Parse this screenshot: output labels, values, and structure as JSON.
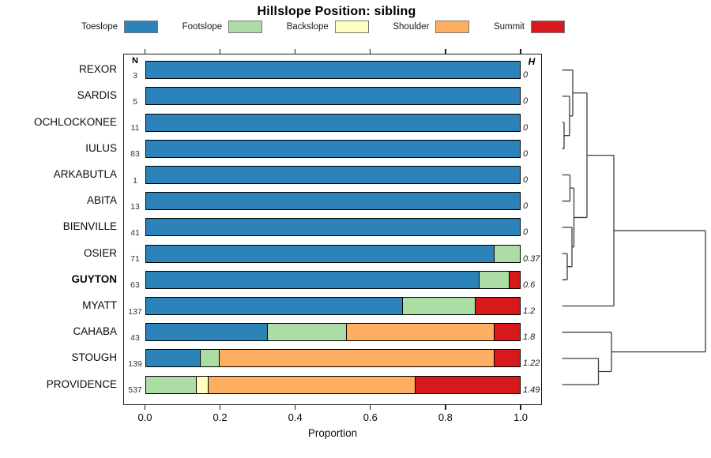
{
  "chart_data": {
    "type": "bar",
    "orientation": "horizontal-stacked",
    "title": "Hillslope Position: sibling",
    "xlabel": "Proportion",
    "xlim": [
      0.0,
      1.0
    ],
    "x_ticks": [
      "0.0",
      "0.2",
      "0.4",
      "0.6",
      "0.8",
      "1.0"
    ],
    "grid": false,
    "legend_position": "top",
    "n_header": "N",
    "h_header": "H",
    "classes": [
      {
        "label": "Toeslope",
        "color": "#2B83BA"
      },
      {
        "label": "Footslope",
        "color": "#ABDDA4"
      },
      {
        "label": "Backslope",
        "color": "#FFFFBF"
      },
      {
        "label": "Shoulder",
        "color": "#FDAE61"
      },
      {
        "label": "Summit",
        "color": "#D7191C"
      }
    ],
    "rows": [
      {
        "label": "REXOR",
        "n": "3",
        "h": "0",
        "bold": false,
        "segments": [
          {
            "class": "Toeslope",
            "p": 1.0
          }
        ]
      },
      {
        "label": "SARDIS",
        "n": "5",
        "h": "0",
        "bold": false,
        "segments": [
          {
            "class": "Toeslope",
            "p": 1.0
          }
        ]
      },
      {
        "label": "OCHLOCKONEE",
        "n": "11",
        "h": "0",
        "bold": false,
        "segments": [
          {
            "class": "Toeslope",
            "p": 1.0
          }
        ]
      },
      {
        "label": "IULUS",
        "n": "83",
        "h": "0",
        "bold": false,
        "segments": [
          {
            "class": "Toeslope",
            "p": 1.0
          }
        ]
      },
      {
        "label": "ARKABUTLA",
        "n": "1",
        "h": "0",
        "bold": false,
        "segments": [
          {
            "class": "Toeslope",
            "p": 1.0
          }
        ]
      },
      {
        "label": "ABITA",
        "n": "13",
        "h": "0",
        "bold": false,
        "segments": [
          {
            "class": "Toeslope",
            "p": 1.0
          }
        ]
      },
      {
        "label": "BIENVILLE",
        "n": "41",
        "h": "0",
        "bold": false,
        "segments": [
          {
            "class": "Toeslope",
            "p": 1.0
          }
        ]
      },
      {
        "label": "OSIER",
        "n": "71",
        "h": "0.37",
        "bold": false,
        "segments": [
          {
            "class": "Toeslope",
            "p": 0.93
          },
          {
            "class": "Footslope",
            "p": 0.07
          }
        ]
      },
      {
        "label": "GUYTON",
        "n": "63",
        "h": "0.6",
        "bold": true,
        "segments": [
          {
            "class": "Toeslope",
            "p": 0.89
          },
          {
            "class": "Footslope",
            "p": 0.08
          },
          {
            "class": "Summit",
            "p": 0.03
          }
        ]
      },
      {
        "label": "MYATT",
        "n": "137",
        "h": "1.2",
        "bold": false,
        "segments": [
          {
            "class": "Toeslope",
            "p": 0.685
          },
          {
            "class": "Footslope",
            "p": 0.195
          },
          {
            "class": "Summit",
            "p": 0.12
          }
        ]
      },
      {
        "label": "CAHABA",
        "n": "43",
        "h": "1.8",
        "bold": false,
        "segments": [
          {
            "class": "Toeslope",
            "p": 0.325
          },
          {
            "class": "Footslope",
            "p": 0.21
          },
          {
            "class": "Shoulder",
            "p": 0.395
          },
          {
            "class": "Summit",
            "p": 0.07
          }
        ]
      },
      {
        "label": "STOUGH",
        "n": "139",
        "h": "1.22",
        "bold": false,
        "segments": [
          {
            "class": "Toeslope",
            "p": 0.145
          },
          {
            "class": "Footslope",
            "p": 0.05
          },
          {
            "class": "Shoulder",
            "p": 0.735
          },
          {
            "class": "Summit",
            "p": 0.07
          }
        ]
      },
      {
        "label": "PROVIDENCE",
        "n": "537",
        "h": "1.49",
        "bold": false,
        "segments": [
          {
            "class": "Footslope",
            "p": 0.135
          },
          {
            "class": "Backslope",
            "p": 0.03
          },
          {
            "class": "Shoulder",
            "p": 0.555
          },
          {
            "class": "Summit",
            "p": 0.28
          }
        ]
      }
    ],
    "dendrogram": {
      "line_color": "#3c3c3c",
      "merges": [
        {
          "id": "M0",
          "x": 714,
          "a": "L2",
          "b": "L3"
        },
        {
          "id": "M1",
          "x": 721,
          "a": "L1",
          "b": "M0"
        },
        {
          "id": "M2",
          "x": 725,
          "a": "L0",
          "b": "M1"
        },
        {
          "id": "M3",
          "x": 721.5,
          "a": "L4",
          "b": "L5"
        },
        {
          "id": "M4",
          "x": 718,
          "a": "L7",
          "b": "L8"
        },
        {
          "id": "M5",
          "x": 724,
          "a": "L6",
          "b": "M4"
        },
        {
          "id": "M6",
          "x": 726.5,
          "a": "M3",
          "b": "M5"
        },
        {
          "id": "M7",
          "x": 743,
          "a": "M2",
          "b": "M6"
        },
        {
          "id": "M8",
          "x": 777,
          "a": "M7",
          "b": "L9"
        },
        {
          "id": "M9",
          "x": 757.5,
          "a": "L11",
          "b": "L12"
        },
        {
          "id": "M10",
          "x": 774,
          "a": "L10",
          "b": "M9"
        },
        {
          "id": "M11",
          "x": 893,
          "a": "M8",
          "b": "M10"
        }
      ]
    }
  }
}
